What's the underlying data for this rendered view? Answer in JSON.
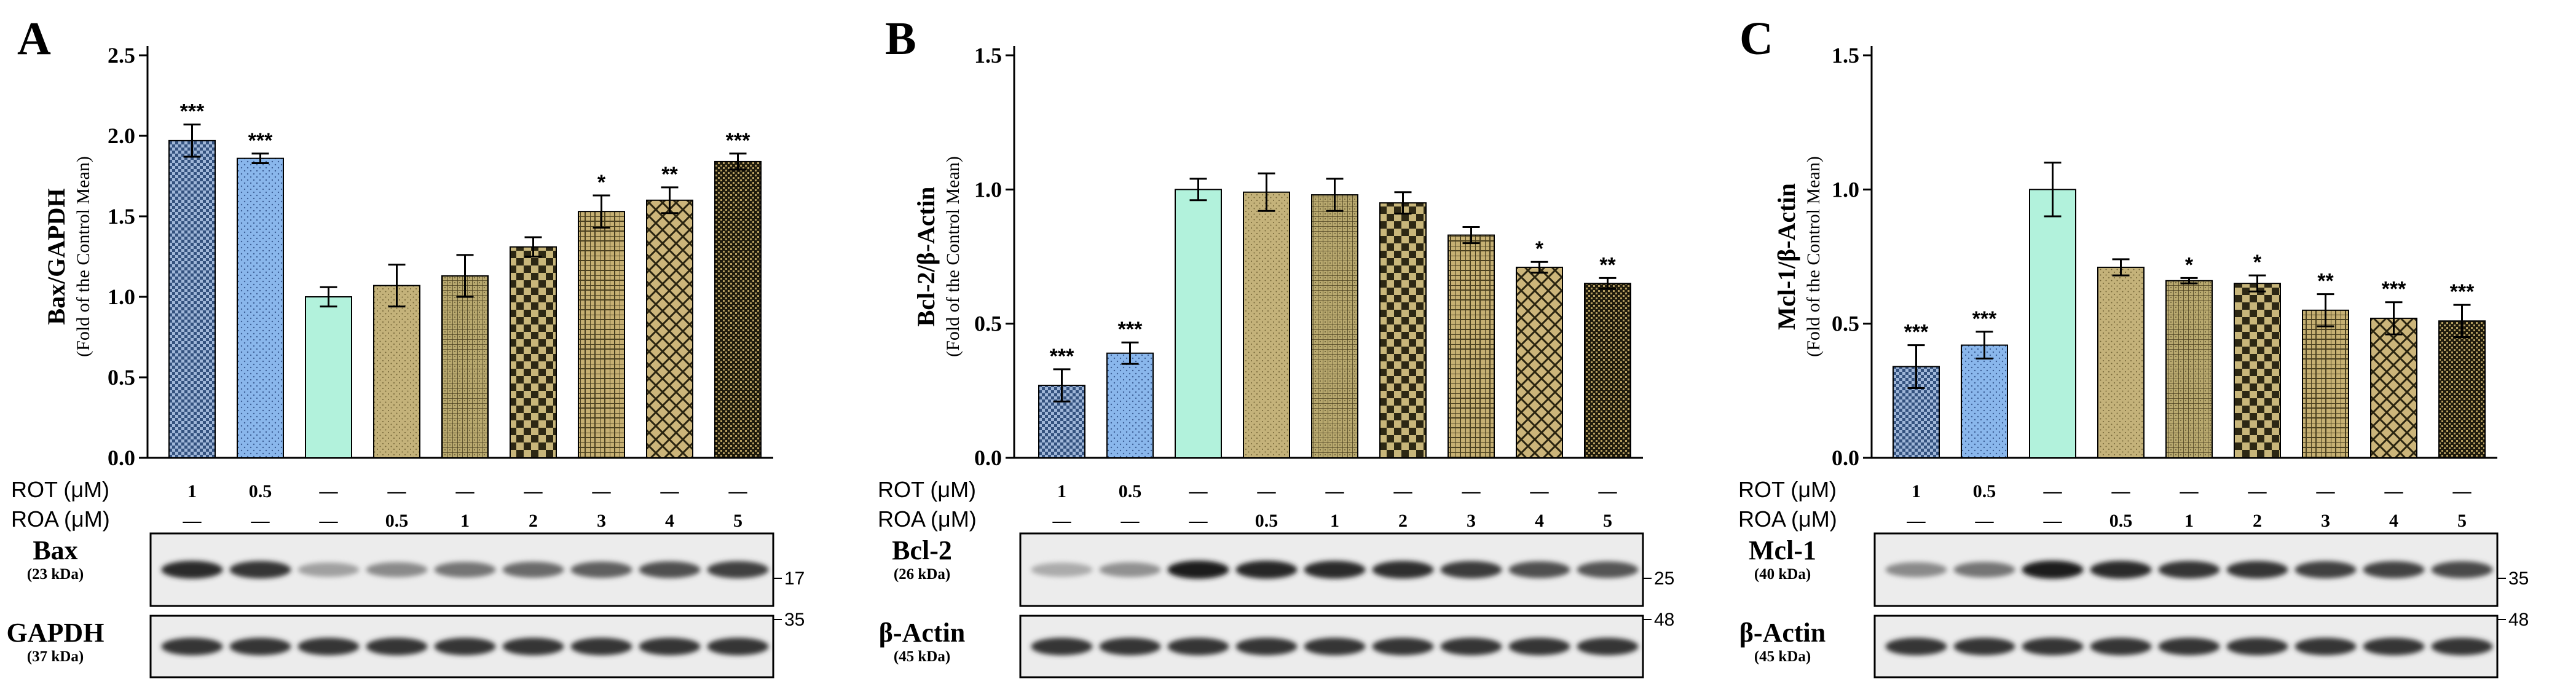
{
  "row_labels": {
    "rot": "ROT (μM)",
    "roa": "ROA (μM)"
  },
  "bar_colors": [
    "#3d5a8a",
    "#8ab7ec",
    "#b2f2dc",
    "#c2b077",
    "#b8a86e",
    "#b0a062",
    "#c3ab6d",
    "#c8b074",
    "#8b7a45"
  ],
  "bar_patterns": [
    "check",
    "dots",
    "none",
    "smalldots",
    "grid",
    "bigcheck",
    "grid2",
    "diamond",
    "dark"
  ],
  "chart_data": [
    {
      "panel": "A",
      "type": "bar",
      "ylabel": "Bax/GAPDH",
      "ylabel_sub": "(Fold of the Control Mean)",
      "ylim": [
        0,
        2.5
      ],
      "yticks": [
        "0.0",
        "0.5",
        "1.0",
        "1.5",
        "2.0",
        "2.5"
      ],
      "categories": [
        "ROT 1",
        "ROT 0.5",
        "Control",
        "ROA 0.5",
        "ROA 1",
        "ROA 2",
        "ROA 3",
        "ROA 4",
        "ROA 5"
      ],
      "values": [
        1.97,
        1.86,
        1.0,
        1.07,
        1.13,
        1.31,
        1.53,
        1.6,
        1.84
      ],
      "errors": [
        0.1,
        0.03,
        0.06,
        0.13,
        0.13,
        0.06,
        0.1,
        0.08,
        0.05
      ],
      "significance": [
        "***",
        "***",
        "",
        "",
        "",
        "",
        "*",
        "**",
        "***"
      ],
      "rot": [
        "1",
        "0.5",
        "—",
        "—",
        "—",
        "—",
        "—",
        "—",
        "—"
      ],
      "roa": [
        "—",
        "—",
        "—",
        "0.5",
        "1",
        "2",
        "3",
        "4",
        "5"
      ],
      "blots": [
        {
          "name": "Bax",
          "kda": "(23 kDa)",
          "marker": "17",
          "bands": [
            0.9,
            0.85,
            0.35,
            0.45,
            0.55,
            0.6,
            0.65,
            0.72,
            0.8
          ]
        },
        {
          "name": "GAPDH",
          "kda": "(37 kDa)",
          "marker": "35",
          "bands": [
            0.85,
            0.85,
            0.85,
            0.85,
            0.85,
            0.85,
            0.85,
            0.85,
            0.85
          ]
        }
      ]
    },
    {
      "panel": "B",
      "type": "bar",
      "ylabel": "Bcl-2/β-Actin",
      "ylabel_sub": "(Fold of the Control Mean)",
      "ylim": [
        0,
        1.5
      ],
      "yticks": [
        "0.0",
        "0.5",
        "1.0",
        "1.5"
      ],
      "categories": [
        "ROT 1",
        "ROT 0.5",
        "Control",
        "ROA 0.5",
        "ROA 1",
        "ROA 2",
        "ROA 3",
        "ROA 4",
        "ROA 5"
      ],
      "values": [
        0.27,
        0.39,
        1.0,
        0.99,
        0.98,
        0.95,
        0.83,
        0.71,
        0.65
      ],
      "errors": [
        0.06,
        0.04,
        0.04,
        0.07,
        0.06,
        0.04,
        0.03,
        0.02,
        0.02
      ],
      "significance": [
        "***",
        "***",
        "",
        "",
        "",
        "",
        "",
        "*",
        "**"
      ],
      "rot": [
        "1",
        "0.5",
        "—",
        "—",
        "—",
        "—",
        "—",
        "—",
        "—"
      ],
      "roa": [
        "—",
        "—",
        "—",
        "0.5",
        "1",
        "2",
        "3",
        "4",
        "5"
      ],
      "blots": [
        {
          "name": "Bcl-2",
          "kda": "(26 kDa)",
          "marker": "25",
          "bands": [
            0.3,
            0.42,
            0.95,
            0.92,
            0.9,
            0.88,
            0.82,
            0.72,
            0.7
          ]
        },
        {
          "name": "β-Actin",
          "kda": "(45 kDa)",
          "marker": "48",
          "bands": [
            0.85,
            0.85,
            0.85,
            0.85,
            0.85,
            0.85,
            0.85,
            0.85,
            0.85
          ]
        }
      ]
    },
    {
      "panel": "C",
      "type": "bar",
      "ylabel": "Mcl-1/β-Actin",
      "ylabel_sub": "(Fold of the Control Mean)",
      "ylim": [
        0,
        1.5
      ],
      "yticks": [
        "0.0",
        "0.5",
        "1.0",
        "1.5"
      ],
      "categories": [
        "ROT 1",
        "ROT 0.5",
        "Control",
        "ROA 0.5",
        "ROA 1",
        "ROA 2",
        "ROA 3",
        "ROA 4",
        "ROA 5"
      ],
      "values": [
        0.34,
        0.42,
        1.0,
        0.71,
        0.66,
        0.65,
        0.55,
        0.52,
        0.51
      ],
      "errors": [
        0.08,
        0.05,
        0.1,
        0.03,
        0.01,
        0.03,
        0.06,
        0.06,
        0.06
      ],
      "significance": [
        "***",
        "***",
        "",
        "",
        "*",
        "*",
        "**",
        "***",
        "***"
      ],
      "rot": [
        "1",
        "0.5",
        "—",
        "—",
        "—",
        "—",
        "—",
        "—",
        "—"
      ],
      "roa": [
        "—",
        "—",
        "—",
        "0.5",
        "1",
        "2",
        "3",
        "4",
        "5"
      ],
      "blots": [
        {
          "name": "Mcl-1",
          "kda": "(40 kDa)",
          "marker": "35",
          "bands": [
            0.45,
            0.55,
            0.95,
            0.9,
            0.85,
            0.85,
            0.8,
            0.78,
            0.75
          ]
        },
        {
          "name": "β-Actin",
          "kda": "(45 kDa)",
          "marker": "48",
          "bands": [
            0.85,
            0.85,
            0.85,
            0.85,
            0.85,
            0.85,
            0.85,
            0.85,
            0.85
          ]
        }
      ]
    }
  ]
}
